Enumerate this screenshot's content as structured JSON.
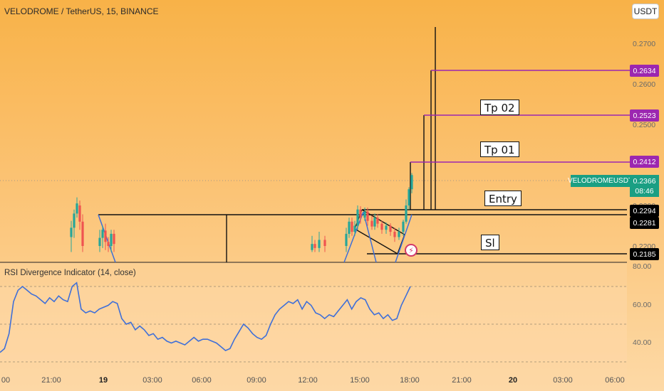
{
  "header": {
    "symbol_title": "VELODROME / TetherUS, 15, BINANCE",
    "currency_button": "USDT"
  },
  "annotations": {
    "tp2": "Tp 02",
    "tp1": "Tp 01",
    "entry": "Entry",
    "sl": "Sl"
  },
  "price_tags": [
    {
      "value": "0.2634",
      "color": "#9c27b0"
    },
    {
      "value": "0.2523",
      "color": "#9c27b0"
    },
    {
      "value": "0.2412",
      "color": "#9c27b0"
    },
    {
      "value": "0.2294",
      "color": "#000000"
    },
    {
      "value": "0.2281",
      "color": "#000000"
    },
    {
      "value": "0.2185",
      "color": "#000000"
    }
  ],
  "live": {
    "symbol": "VELODROMEUSDT",
    "price": "0.2366",
    "countdown": "08:46"
  },
  "price_axis": [
    "0.2700",
    "0.2600",
    "0.2500",
    "0.2400",
    "0.2300",
    "0.2200"
  ],
  "rsi": {
    "title": "RSI Divergence Indicator (14, close)",
    "axis": [
      "80.00",
      "60.00",
      "40.00"
    ],
    "upper_band": 70,
    "lower_band": 30,
    "mid": 50
  },
  "time_axis": [
    {
      "label": "00",
      "day": false
    },
    {
      "label": "21:00",
      "day": false
    },
    {
      "label": "19",
      "day": true
    },
    {
      "label": "03:00",
      "day": false
    },
    {
      "label": "06:00",
      "day": false
    },
    {
      "label": "09:00",
      "day": false
    },
    {
      "label": "12:00",
      "day": false
    },
    {
      "label": "15:00",
      "day": false
    },
    {
      "label": "18:00",
      "day": false
    },
    {
      "label": "21:00",
      "day": false
    },
    {
      "label": "20",
      "day": true
    },
    {
      "label": "03:00",
      "day": false
    },
    {
      "label": "06:00",
      "day": false
    }
  ],
  "colors": {
    "bull": "#26a69a",
    "bear": "#ef5350",
    "purple": "#9c27b0",
    "rsi_line": "#3f6fd8",
    "live": "#1a9f83"
  },
  "chart_data": {
    "type": "candlestick",
    "price_levels": [
      0.2634,
      0.2523,
      0.2412,
      0.2366,
      0.2294,
      0.2281,
      0.2185
    ],
    "price_range": [
      0.215,
      0.2755
    ],
    "rsi_range": [
      30,
      80
    ],
    "rsi_values": [
      35,
      37,
      45,
      62,
      68,
      70,
      68,
      66,
      65,
      63,
      61,
      64,
      62,
      65,
      63,
      62,
      70,
      72,
      58,
      56,
      57,
      56,
      58,
      59,
      60,
      62,
      61,
      53,
      50,
      51,
      47,
      49,
      47,
      44,
      45,
      42,
      43,
      41,
      40,
      41,
      40,
      39,
      41,
      43,
      41,
      42,
      42,
      41,
      40,
      38,
      36,
      37,
      42,
      46,
      50,
      48,
      45,
      43,
      42,
      44,
      50,
      55,
      58,
      60,
      62,
      61,
      63,
      58,
      62,
      60,
      56,
      55,
      53,
      55,
      54,
      57,
      60,
      63,
      58,
      62,
      64,
      63,
      58,
      55,
      56,
      53,
      55,
      52,
      53,
      60,
      65,
      70
    ]
  }
}
